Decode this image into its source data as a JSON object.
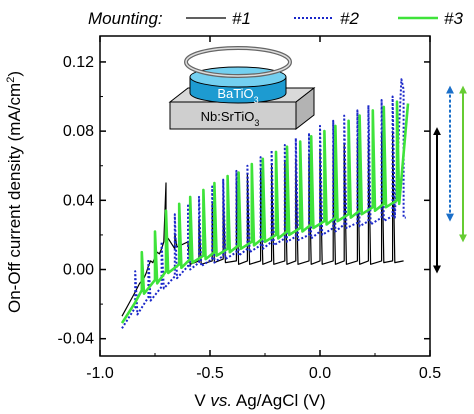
{
  "chart_data": {
    "type": "line",
    "xlabel_parts": [
      "V ",
      "vs.",
      " Ag/AgCl (V)"
    ],
    "ylabel_main": "On-Off current density (mA/cm",
    "ylabel_sup": "2",
    "ylabel_end": ")",
    "xlim": [
      -1.0,
      0.5
    ],
    "ylim": [
      -0.05,
      0.135
    ],
    "xticks": [
      -1.0,
      -0.5,
      0.0,
      0.5
    ],
    "xtick_labels": [
      "-1.0",
      "-0.5",
      "0.0",
      "0.5"
    ],
    "yticks": [
      -0.04,
      0.0,
      0.04,
      0.08,
      0.12
    ],
    "ytick_labels": [
      "-0.04",
      "0.00",
      "0.04",
      "0.08",
      "0.12"
    ],
    "legend_title": "Mounting:",
    "legend_position": "top",
    "series": [
      {
        "name": "#1",
        "color": "#000000",
        "style": "solid",
        "x": [
          -0.9,
          -0.87,
          -0.84,
          -0.82,
          -0.8,
          -0.79,
          -0.78,
          -0.77,
          -0.76,
          -0.75,
          -0.74,
          -0.73,
          -0.72,
          -0.71,
          -0.7,
          -0.7,
          -0.69,
          -0.66,
          -0.66,
          -0.65,
          -0.6,
          -0.6,
          -0.59,
          -0.55,
          -0.55,
          -0.54,
          -0.49,
          -0.49,
          -0.48,
          -0.44,
          -0.44,
          -0.43,
          -0.38,
          -0.38,
          -0.37,
          -0.33,
          -0.33,
          -0.32,
          -0.27,
          -0.27,
          -0.26,
          -0.22,
          -0.22,
          -0.21,
          -0.16,
          -0.16,
          -0.15,
          -0.11,
          -0.11,
          -0.1,
          -0.05,
          -0.05,
          -0.04,
          0.0,
          0.0,
          0.01,
          0.06,
          0.06,
          0.07,
          0.11,
          0.11,
          0.12,
          0.17,
          0.17,
          0.18,
          0.22,
          0.22,
          0.23,
          0.28,
          0.28,
          0.29,
          0.33,
          0.33,
          0.34,
          0.38
        ],
        "y": [
          -0.027,
          -0.02,
          -0.013,
          -0.008,
          -0.005,
          -0.002,
          0.002,
          0.005,
          0.004,
          0.007,
          0.01,
          0.009,
          0.012,
          0.016,
          0.05,
          0.015,
          0.018,
          0.012,
          0.021,
          0.013,
          0.016,
          0.015,
          0.003,
          0.005,
          0.029,
          0.003,
          0.005,
          0.038,
          0.004,
          0.006,
          0.045,
          0.004,
          0.005,
          0.051,
          0.003,
          0.005,
          0.055,
          0.003,
          0.005,
          0.057,
          0.003,
          0.005,
          0.06,
          0.003,
          0.005,
          0.062,
          0.003,
          0.005,
          0.064,
          0.003,
          0.005,
          0.066,
          0.003,
          0.005,
          0.069,
          0.003,
          0.005,
          0.071,
          0.003,
          0.005,
          0.073,
          0.003,
          0.005,
          0.075,
          0.003,
          0.005,
          0.077,
          0.003,
          0.005,
          0.079,
          0.004,
          0.005,
          0.08,
          0.004,
          0.005
        ]
      },
      {
        "name": "#2",
        "color": "#1a27c9",
        "style": "dotted",
        "x": [
          -0.9,
          -0.87,
          -0.84,
          -0.84,
          -0.83,
          -0.78,
          -0.78,
          -0.77,
          -0.72,
          -0.72,
          -0.71,
          -0.66,
          -0.66,
          -0.65,
          -0.6,
          -0.6,
          -0.59,
          -0.55,
          -0.55,
          -0.54,
          -0.49,
          -0.49,
          -0.48,
          -0.44,
          -0.44,
          -0.43,
          -0.38,
          -0.38,
          -0.37,
          -0.33,
          -0.33,
          -0.32,
          -0.27,
          -0.27,
          -0.26,
          -0.22,
          -0.22,
          -0.21,
          -0.16,
          -0.16,
          -0.15,
          -0.11,
          -0.11,
          -0.1,
          -0.05,
          -0.05,
          -0.04,
          0.0,
          0.0,
          0.01,
          0.06,
          0.06,
          0.07,
          0.11,
          0.11,
          0.12,
          0.17,
          0.17,
          0.18,
          0.22,
          0.22,
          0.23,
          0.28,
          0.28,
          0.29,
          0.33,
          0.33,
          0.34,
          0.37,
          0.38,
          0.38,
          0.39
        ],
        "y": [
          -0.034,
          -0.028,
          -0.022,
          -0.001,
          -0.026,
          -0.016,
          0.006,
          -0.018,
          -0.01,
          0.016,
          -0.011,
          -0.004,
          0.032,
          -0.005,
          0.002,
          0.038,
          0.0,
          0.004,
          0.042,
          0.002,
          0.006,
          0.048,
          0.004,
          0.008,
          0.052,
          0.006,
          0.01,
          0.057,
          0.008,
          0.012,
          0.06,
          0.01,
          0.014,
          0.065,
          0.012,
          0.016,
          0.069,
          0.014,
          0.018,
          0.072,
          0.016,
          0.019,
          0.076,
          0.017,
          0.02,
          0.079,
          0.018,
          0.022,
          0.083,
          0.02,
          0.024,
          0.086,
          0.022,
          0.026,
          0.089,
          0.024,
          0.027,
          0.092,
          0.025,
          0.028,
          0.095,
          0.026,
          0.03,
          0.098,
          0.028,
          0.031,
          0.1,
          0.03,
          0.11,
          0.104,
          0.03,
          0.03
        ]
      },
      {
        "name": "#3",
        "color": "#3fe33a",
        "style": "solid",
        "x": [
          -0.9,
          -0.87,
          -0.84,
          -0.81,
          -0.81,
          -0.8,
          -0.75,
          -0.75,
          -0.74,
          -0.7,
          -0.7,
          -0.69,
          -0.64,
          -0.64,
          -0.63,
          -0.59,
          -0.59,
          -0.58,
          -0.53,
          -0.53,
          -0.52,
          -0.48,
          -0.48,
          -0.47,
          -0.42,
          -0.42,
          -0.41,
          -0.37,
          -0.37,
          -0.36,
          -0.31,
          -0.31,
          -0.3,
          -0.26,
          -0.26,
          -0.25,
          -0.2,
          -0.2,
          -0.19,
          -0.15,
          -0.15,
          -0.14,
          -0.09,
          -0.09,
          -0.08,
          -0.04,
          -0.04,
          -0.03,
          0.02,
          0.02,
          0.03,
          0.07,
          0.07,
          0.08,
          0.13,
          0.13,
          0.14,
          0.18,
          0.18,
          0.19,
          0.24,
          0.24,
          0.25,
          0.29,
          0.29,
          0.3,
          0.35,
          0.35,
          0.36,
          0.4
        ],
        "y": [
          -0.031,
          -0.025,
          -0.019,
          -0.012,
          0.01,
          -0.014,
          -0.006,
          0.022,
          -0.008,
          -0.001,
          0.034,
          -0.002,
          0.003,
          0.038,
          0.001,
          0.006,
          0.042,
          0.004,
          0.008,
          0.046,
          0.006,
          0.01,
          0.05,
          0.008,
          0.012,
          0.054,
          0.01,
          0.014,
          0.056,
          0.012,
          0.016,
          0.061,
          0.014,
          0.018,
          0.064,
          0.016,
          0.02,
          0.068,
          0.018,
          0.022,
          0.071,
          0.02,
          0.024,
          0.074,
          0.022,
          0.026,
          0.077,
          0.024,
          0.028,
          0.08,
          0.026,
          0.03,
          0.083,
          0.028,
          0.032,
          0.086,
          0.03,
          0.034,
          0.089,
          0.032,
          0.036,
          0.092,
          0.034,
          0.038,
          0.094,
          0.036,
          0.04,
          0.097,
          0.038,
          0.096
        ]
      }
    ],
    "range_arrows": [
      {
        "name": "#1",
        "color": "#000000",
        "y0": 0.0,
        "y1": 0.08,
        "style": "solid"
      },
      {
        "name": "#2",
        "color": "#1a6fc9",
        "y0": 0.03,
        "y1": 0.104,
        "style": "dotted"
      },
      {
        "name": "#3",
        "color": "#66cc33",
        "y0": 0.018,
        "y1": 0.104,
        "style": "solid"
      }
    ],
    "inset": {
      "top_label": "BaTiO",
      "top_sub": "3",
      "bottom_label": "Nb:SrTiO",
      "bottom_sub": "3"
    }
  }
}
